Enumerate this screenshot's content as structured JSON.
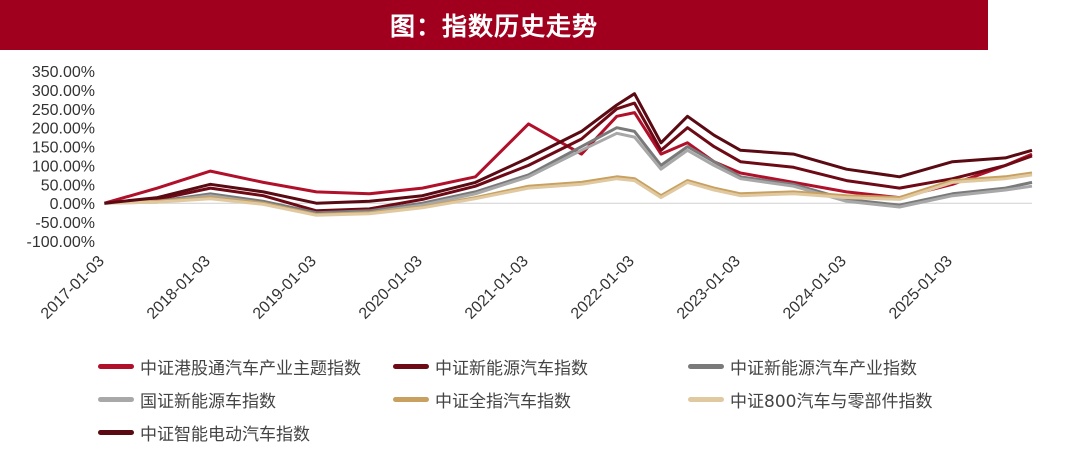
{
  "title": "图：指数历史走势",
  "chart_data": {
    "type": "line",
    "title": "图：指数历史走势",
    "xlabel": "",
    "ylabel": "",
    "x_ticks": [
      "2017-01-03",
      "2018-01-03",
      "2019-01-03",
      "2020-01-03",
      "2021-01-03",
      "2022-01-03",
      "2023-01-03",
      "2024-01-03",
      "2025-01-03"
    ],
    "y_ticks": [
      "350.00%",
      "300.00%",
      "250.00%",
      "200.00%",
      "150.00%",
      "100.00%",
      "50.00%",
      "0.00%",
      "-50.00%",
      "-100.00%"
    ],
    "ylim": [
      -100,
      350
    ],
    "xlim": [
      "2017-01-03",
      "2025-10-01"
    ],
    "grid": false,
    "legend_position": "bottom",
    "x_dates": [
      "2017-01",
      "2017-07",
      "2018-01",
      "2018-07",
      "2019-01",
      "2019-07",
      "2020-01",
      "2020-07",
      "2021-01",
      "2021-07",
      "2021-11",
      "2022-01",
      "2022-04",
      "2022-07",
      "2022-10",
      "2023-01",
      "2023-07",
      "2024-01",
      "2024-07",
      "2025-01",
      "2025-07",
      "2025-10"
    ],
    "series": [
      {
        "name": "中证港股通汽车产业主题指数",
        "color": "#b0102a",
        "values": [
          0,
          40,
          85,
          55,
          30,
          25,
          40,
          70,
          210,
          130,
          230,
          240,
          130,
          160,
          110,
          80,
          55,
          30,
          15,
          50,
          100,
          130
        ]
      },
      {
        "name": "中证新能源汽车指数",
        "color": "#6d0a16",
        "values": [
          0,
          10,
          40,
          20,
          -20,
          -15,
          10,
          45,
          100,
          170,
          250,
          265,
          140,
          200,
          150,
          110,
          95,
          60,
          40,
          65,
          100,
          125
        ]
      },
      {
        "name": "中证新能源汽车产业指数",
        "color": "#7a7a7a",
        "values": [
          0,
          5,
          25,
          5,
          -25,
          -20,
          0,
          30,
          75,
          150,
          200,
          190,
          100,
          150,
          110,
          70,
          50,
          10,
          -5,
          25,
          40,
          55
        ]
      },
      {
        "name": "国证新能源车指数",
        "color": "#a8a8a8",
        "values": [
          0,
          3,
          20,
          0,
          -30,
          -25,
          -5,
          25,
          70,
          140,
          185,
          175,
          90,
          140,
          100,
          65,
          45,
          5,
          -10,
          20,
          35,
          45
        ]
      },
      {
        "name": "中证全指汽车指数",
        "color": "#c8a060",
        "values": [
          0,
          5,
          15,
          0,
          -30,
          -25,
          -10,
          15,
          45,
          55,
          70,
          65,
          20,
          60,
          40,
          25,
          30,
          20,
          15,
          60,
          70,
          80
        ]
      },
      {
        "name": "中证800汽车与零部件指数",
        "color": "#e0c9a0",
        "values": [
          0,
          3,
          12,
          -3,
          -32,
          -28,
          -12,
          12,
          40,
          50,
          65,
          60,
          15,
          55,
          35,
          20,
          25,
          15,
          10,
          55,
          65,
          75
        ]
      },
      {
        "name": "中证智能电动汽车指数",
        "color": "#5a0a12",
        "values": [
          0,
          15,
          50,
          30,
          0,
          5,
          20,
          55,
          120,
          190,
          260,
          290,
          160,
          230,
          180,
          140,
          130,
          90,
          70,
          110,
          120,
          140
        ]
      }
    ]
  }
}
